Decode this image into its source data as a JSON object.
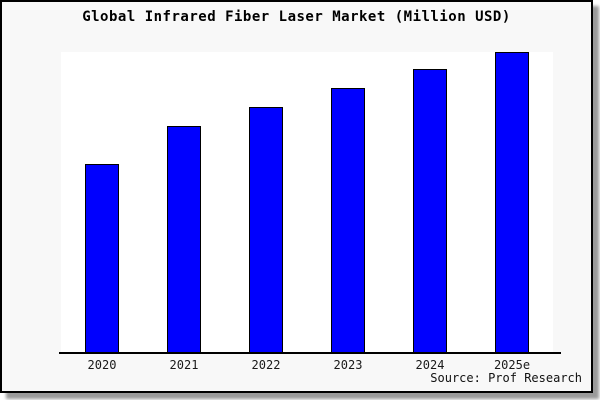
{
  "chart": {
    "title": "Global Infrared Fiber Laser Market (Million USD)",
    "source": "Source: Prof Research"
  },
  "chart_data": {
    "type": "bar",
    "title": "Global Infrared Fiber Laser Market (Million USD)",
    "categories": [
      "2020",
      "2021",
      "2022",
      "2023",
      "2024",
      "2025e"
    ],
    "values": [
      62.7,
      75.3,
      81.7,
      88.0,
      94.3,
      100
    ],
    "values_note": "No y-axis or value labels are shown in the image; values are relative bar heights normalized to 2025e = 100",
    "xlabel": "",
    "ylabel": "",
    "ylim": [
      0,
      100
    ],
    "grid": false,
    "legend": false,
    "source": "Source: Prof Research"
  },
  "colors": {
    "page_background": "#ffffff",
    "frame_background": "#f8f8f8",
    "frame_border": "#000000",
    "frame_shadow": "#9a9a9a",
    "plot_background": "#ffffff",
    "bar_fill": "#0000fe",
    "bar_border": "#000000",
    "axis_line": "#000000",
    "title_color": "#000000",
    "tick_label_color": "#1a1a1a"
  }
}
